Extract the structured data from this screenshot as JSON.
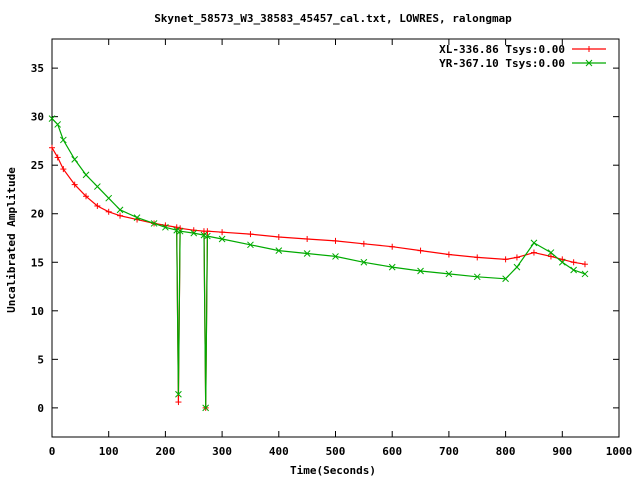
{
  "chart_data": {
    "type": "line",
    "title": "Skynet_58573_W3_38583_45457_cal.txt, LOWRES, ralongmap",
    "xlabel": "Time(Seconds)",
    "ylabel": "Uncalibrated Amplitude",
    "xlim": [
      0,
      1000
    ],
    "ylim": [
      -3,
      38
    ],
    "xticks": [
      0,
      100,
      200,
      300,
      400,
      500,
      600,
      700,
      800,
      900,
      1000
    ],
    "yticks": [
      0,
      5,
      10,
      15,
      20,
      25,
      30,
      35
    ],
    "grid": false,
    "legend_position": "top-right",
    "series": [
      {
        "name": "XL-336.86 Tsys:0.00",
        "color": "#ff0000",
        "marker": "plus",
        "x": [
          0,
          10,
          20,
          40,
          60,
          80,
          100,
          120,
          150,
          180,
          200,
          220,
          223,
          226,
          250,
          268,
          271,
          274,
          300,
          350,
          400,
          450,
          500,
          550,
          600,
          650,
          700,
          750,
          800,
          820,
          850,
          880,
          900,
          920,
          940
        ],
        "y": [
          26.8,
          25.8,
          24.6,
          23.0,
          21.8,
          20.8,
          20.2,
          19.8,
          19.4,
          19.0,
          18.8,
          18.6,
          0.6,
          18.5,
          18.3,
          18.2,
          0.0,
          18.2,
          18.1,
          17.9,
          17.6,
          17.4,
          17.2,
          16.9,
          16.6,
          16.2,
          15.8,
          15.5,
          15.3,
          15.5,
          16.0,
          15.6,
          15.3,
          15.0,
          14.8
        ]
      },
      {
        "name": "YR-367.10 Tsys:0.00",
        "color": "#00aa00",
        "marker": "cross",
        "x": [
          0,
          10,
          20,
          40,
          60,
          80,
          100,
          120,
          150,
          180,
          200,
          220,
          223,
          226,
          250,
          268,
          271,
          274,
          300,
          350,
          400,
          450,
          500,
          550,
          600,
          650,
          700,
          750,
          800,
          820,
          850,
          880,
          900,
          920,
          940
        ],
        "y": [
          29.8,
          29.2,
          27.6,
          25.6,
          24.0,
          22.8,
          21.6,
          20.4,
          19.6,
          19.0,
          18.6,
          18.3,
          1.4,
          18.2,
          18.0,
          17.8,
          0.0,
          17.7,
          17.4,
          16.8,
          16.2,
          15.9,
          15.6,
          15.0,
          14.5,
          14.1,
          13.8,
          13.5,
          13.3,
          14.5,
          17.0,
          16.0,
          15.0,
          14.2,
          13.8
        ]
      }
    ]
  }
}
